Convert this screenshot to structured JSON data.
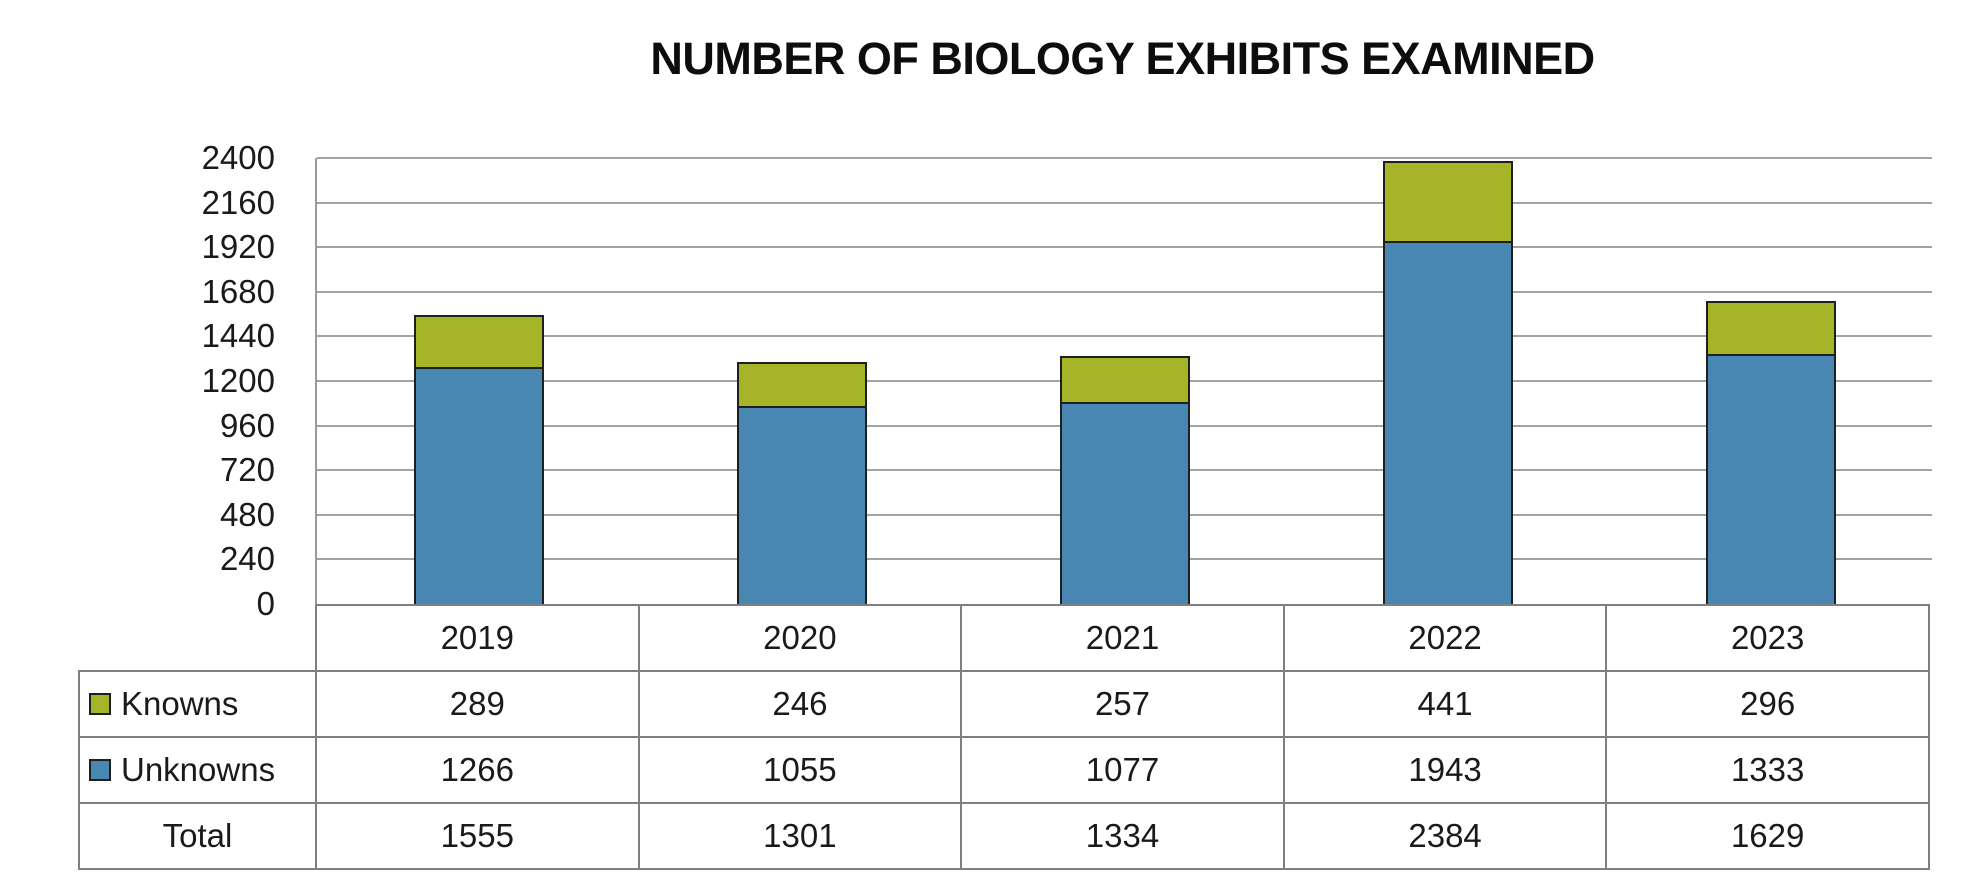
{
  "chart_data": {
    "type": "bar",
    "stacked": true,
    "title": "NUMBER OF BIOLOGY EXHIBITS EXAMINED",
    "categories": [
      "2019",
      "2020",
      "2021",
      "2022",
      "2023"
    ],
    "series": [
      {
        "name": "Unknowns",
        "color": "#4887B2",
        "values": [
          1266,
          1055,
          1077,
          1943,
          1333
        ]
      },
      {
        "name": "Knowns",
        "color": "#A6B427",
        "values": [
          289,
          246,
          257,
          441,
          296
        ]
      }
    ],
    "totals": [
      1555,
      1301,
      1334,
      2384,
      1629
    ],
    "ylim": [
      0,
      2400
    ],
    "ytick_step": 240,
    "ytick_labels": [
      "0",
      "240",
      "480",
      "720",
      "960",
      "1200",
      "1440",
      "1680",
      "1920",
      "2160",
      "2400"
    ],
    "grid": "horizontal gridlines only, gray",
    "legend_position": "row headers of data table below chart",
    "bar_border_color": "#1F1F1F",
    "xlabel": "",
    "ylabel": ""
  },
  "table": {
    "year_header": [
      "2019",
      "2020",
      "2021",
      "2022",
      "2023"
    ],
    "rows": [
      {
        "label": "Knowns",
        "swatch_color": "#A6B427",
        "values": [
          "289",
          "246",
          "257",
          "441",
          "296"
        ]
      },
      {
        "label": "Unknowns",
        "swatch_color": "#4887B2",
        "values": [
          "1266",
          "1055",
          "1077",
          "1943",
          "1333"
        ]
      },
      {
        "label": "Total",
        "swatch_color": null,
        "values": [
          "1555",
          "1301",
          "1334",
          "2384",
          "1629"
        ]
      }
    ]
  },
  "colors": {
    "knowns_green": "#A6B427",
    "unknowns_blue": "#4887B2",
    "bar_outline": "#1F1F1F",
    "gridline_gray": "#A3A3A3",
    "table_border_gray": "#7F7F7F",
    "text": "#1A1A1A",
    "background": "#FFFFFF"
  }
}
